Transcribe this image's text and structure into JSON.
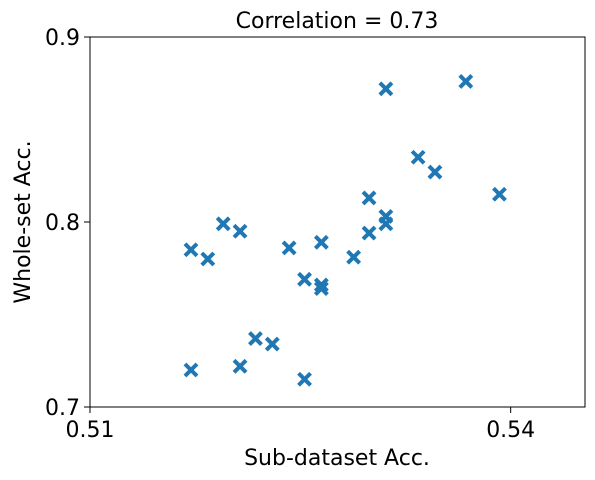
{
  "chart_data": {
    "type": "scatter",
    "title": "Correlation = 0.73",
    "xlabel": "Sub-dataset Acc.",
    "ylabel": "Whole-set Acc.",
    "xlim": [
      0.51,
      0.5453
    ],
    "ylim": [
      0.7,
      0.9
    ],
    "xticks": [
      0.51,
      0.54
    ],
    "xtick_labels": [
      "0.51",
      "0.54"
    ],
    "yticks": [
      0.7,
      0.8,
      0.9
    ],
    "ytick_labels": [
      "0.7",
      "0.8",
      "0.9"
    ],
    "grid": false,
    "marker": "x",
    "color": "#1f77b4",
    "points": [
      {
        "x": 0.5172,
        "y": 0.785
      },
      {
        "x": 0.5172,
        "y": 0.72
      },
      {
        "x": 0.5184,
        "y": 0.78
      },
      {
        "x": 0.5195,
        "y": 0.799
      },
      {
        "x": 0.5207,
        "y": 0.795
      },
      {
        "x": 0.5207,
        "y": 0.722
      },
      {
        "x": 0.5218,
        "y": 0.737
      },
      {
        "x": 0.523,
        "y": 0.734
      },
      {
        "x": 0.5242,
        "y": 0.786
      },
      {
        "x": 0.5253,
        "y": 0.769
      },
      {
        "x": 0.5253,
        "y": 0.715
      },
      {
        "x": 0.5265,
        "y": 0.789
      },
      {
        "x": 0.5265,
        "y": 0.766
      },
      {
        "x": 0.5265,
        "y": 0.764
      },
      {
        "x": 0.5288,
        "y": 0.781
      },
      {
        "x": 0.5299,
        "y": 0.813
      },
      {
        "x": 0.5299,
        "y": 0.794
      },
      {
        "x": 0.5311,
        "y": 0.872
      },
      {
        "x": 0.5311,
        "y": 0.803
      },
      {
        "x": 0.5311,
        "y": 0.799
      },
      {
        "x": 0.5334,
        "y": 0.835
      },
      {
        "x": 0.5346,
        "y": 0.827
      },
      {
        "x": 0.5368,
        "y": 0.876
      },
      {
        "x": 0.5392,
        "y": 0.815
      }
    ]
  }
}
